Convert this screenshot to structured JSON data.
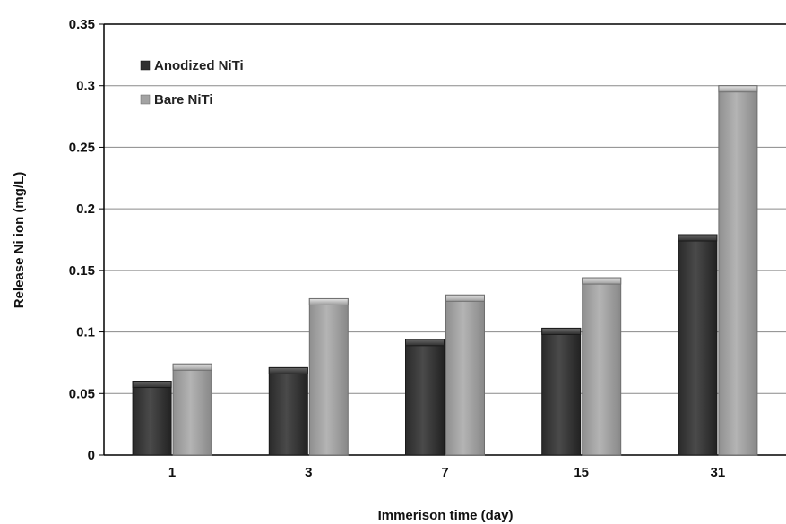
{
  "chart_data": {
    "type": "bar",
    "title": "",
    "xlabel": "Immerison time (day)",
    "ylabel": "Release Ni ion (mg/L)",
    "categories": [
      "1",
      "3",
      "7",
      "15",
      "31"
    ],
    "ylim": [
      0,
      0.35
    ],
    "yticks": [
      0,
      0.05,
      0.1,
      0.15,
      0.2,
      0.25,
      0.3,
      0.35
    ],
    "ytick_labels": [
      "0",
      "0.05",
      "0.1",
      "0.15",
      "0.2",
      "0.25",
      "0.3",
      "0.35"
    ],
    "grid": true,
    "legend_position": "top-left",
    "series": [
      {
        "name": "Anodized NiTi",
        "color": "#3a3a3a",
        "values": [
          0.06,
          0.071,
          0.094,
          0.103,
          0.179
        ]
      },
      {
        "name": "Bare NiTi",
        "color": "#a3a3a3",
        "values": [
          0.074,
          0.127,
          0.13,
          0.144,
          0.3
        ]
      }
    ]
  }
}
